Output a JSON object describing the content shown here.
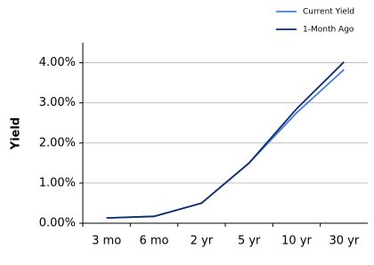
{
  "chart_data": {
    "type": "line",
    "y_label": "Yield",
    "categories": [
      "3 mo",
      "6 mo",
      "2 yr",
      "5 yr",
      "10 yr",
      "30 yr"
    ],
    "series": [
      {
        "name": "Current Yield",
        "color": "#4a7be0",
        "values": [
          0.13,
          0.17,
          0.5,
          1.5,
          2.75,
          3.83
        ]
      },
      {
        "name": "1-Month Ago",
        "color": "#0f2d6b",
        "values": [
          0.13,
          0.17,
          0.5,
          1.5,
          2.85,
          4.02
        ]
      }
    ],
    "ylim": [
      0,
      4.5
    ],
    "yticks": [
      {
        "value": 0,
        "label": "0.00%"
      },
      {
        "value": 1,
        "label": "1.00%"
      },
      {
        "value": 2,
        "label": "2.00%"
      },
      {
        "value": 3,
        "label": "3.00%"
      },
      {
        "value": 4,
        "label": "4.00%"
      }
    ],
    "grid": true,
    "legend": "top-right"
  }
}
